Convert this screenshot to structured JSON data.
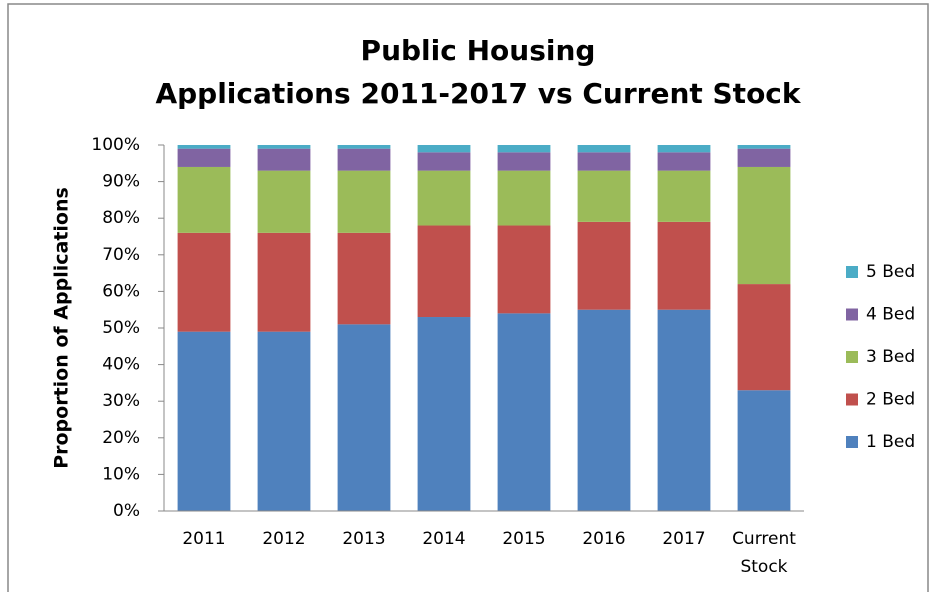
{
  "chart_data": {
    "type": "stacked_bar",
    "title": [
      "Public Housing",
      "Applications 2011-2017 vs Current Stock"
    ],
    "y_label": "Proportion of Applications",
    "categories": [
      "2011",
      "2012",
      "2013",
      "2014",
      "2015",
      "2016",
      "2017",
      "Current Stock"
    ],
    "series": [
      {
        "name": "1 Bed",
        "color": "#4f81bd",
        "values": [
          49,
          49,
          51,
          53,
          54,
          55,
          55,
          33
        ]
      },
      {
        "name": "2 Bed",
        "color": "#c0504d",
        "values": [
          27,
          27,
          25,
          25,
          24,
          24,
          24,
          29
        ]
      },
      {
        "name": "3 Bed",
        "color": "#9bbb59",
        "values": [
          18,
          17,
          17,
          15,
          15,
          14,
          14,
          32
        ]
      },
      {
        "name": "4 Bed",
        "color": "#8064a2",
        "values": [
          5,
          6,
          6,
          5,
          5,
          5,
          5,
          5
        ]
      },
      {
        "name": "5 Bed",
        "color": "#4bacc6",
        "values": [
          1,
          1,
          1,
          2,
          2,
          2,
          2,
          1
        ]
      }
    ],
    "ylim": [
      0,
      100
    ],
    "yticks": [
      {
        "value": 0,
        "label": "0%"
      },
      {
        "value": 10,
        "label": "10%"
      },
      {
        "value": 20,
        "label": "20%"
      },
      {
        "value": 30,
        "label": "30%"
      },
      {
        "value": 40,
        "label": "40%"
      },
      {
        "value": 50,
        "label": "50%"
      },
      {
        "value": 60,
        "label": "60%"
      },
      {
        "value": 70,
        "label": "70%"
      },
      {
        "value": 80,
        "label": "80%"
      },
      {
        "value": 90,
        "label": "90%"
      },
      {
        "value": 100,
        "label": "100%"
      }
    ],
    "grid": false,
    "legend": "right"
  }
}
